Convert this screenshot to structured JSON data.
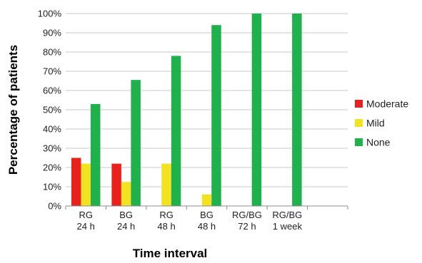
{
  "chart_data": {
    "type": "bar",
    "categories": [
      [
        "RG",
        "24 h"
      ],
      [
        "BG",
        "24 h"
      ],
      [
        "RG",
        "48 h"
      ],
      [
        "BG",
        "48 h"
      ],
      [
        "RG/BG",
        "72 h"
      ],
      [
        "RG/BG",
        "1 week"
      ]
    ],
    "series": [
      {
        "name": "Moderate",
        "color": "#e8211d",
        "values": [
          25,
          22,
          0,
          0,
          0,
          0
        ]
      },
      {
        "name": "Mild",
        "color": "#f2e21f",
        "values": [
          22,
          12.5,
          22,
          6,
          0,
          0
        ]
      },
      {
        "name": "None",
        "color": "#1fb14b",
        "values": [
          53,
          65.5,
          78,
          94,
          100,
          100
        ]
      }
    ],
    "xlabel": "Time interval",
    "ylabel": "Percentage of patients",
    "ylim": [
      0,
      100
    ],
    "yticks": [
      "0%",
      "10%",
      "20%",
      "30%",
      "40%",
      "50%",
      "60%",
      "70%",
      "80%",
      "90%",
      "100%"
    ],
    "grid": true,
    "legend_position": "right"
  }
}
